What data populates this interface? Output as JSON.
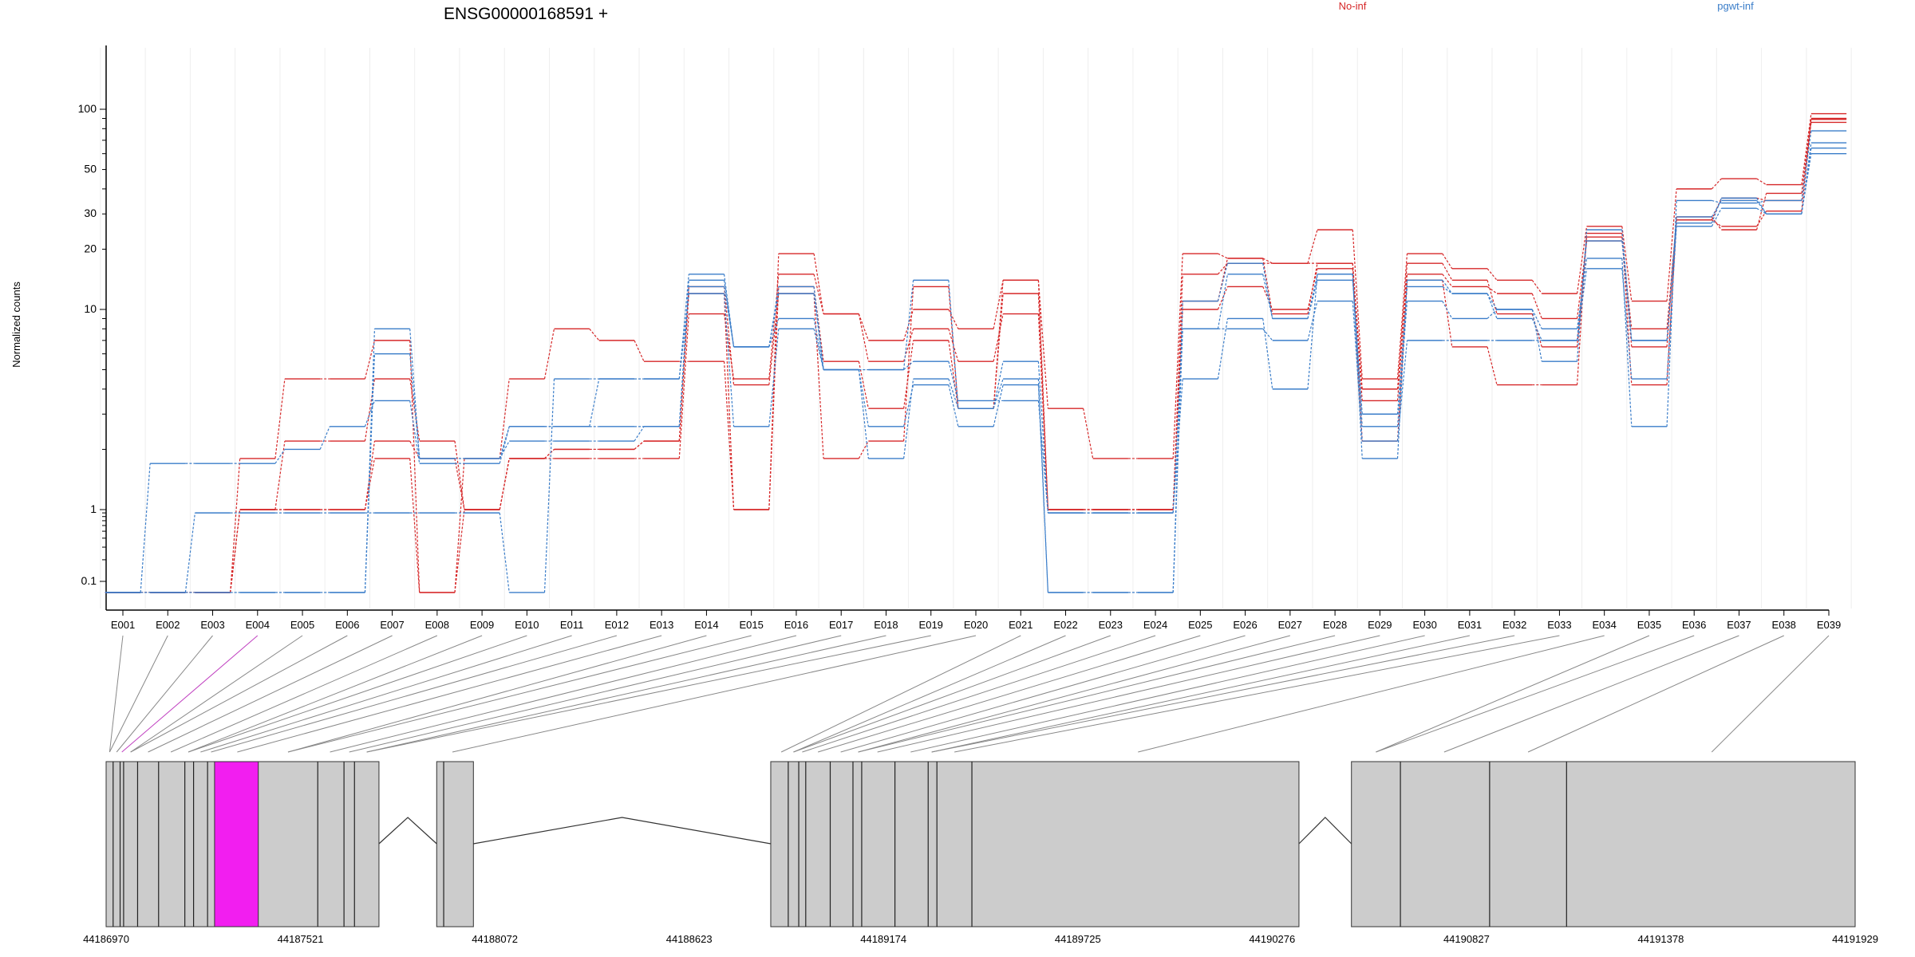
{
  "chart_data": {
    "type": "line",
    "title": "ENSG00000168591 +",
    "ylabel": "Normalized counts",
    "y_scale": "log",
    "y_ticks": [
      "100",
      "50",
      "30",
      "20",
      "10",
      "1",
      "0.1"
    ],
    "categories": [
      "E001",
      "E002",
      "E003",
      "E004",
      "E005",
      "E006",
      "E007",
      "E008",
      "E009",
      "E010",
      "E011",
      "E012",
      "E013",
      "E014",
      "E015",
      "E016",
      "E017",
      "E018",
      "E019",
      "E020",
      "E021",
      "E022",
      "E023",
      "E024",
      "E025",
      "E026",
      "E027",
      "E028",
      "E029",
      "E030",
      "E031",
      "E032",
      "E033",
      "E034",
      "E035",
      "E036",
      "E037",
      "E038",
      "E039"
    ],
    "groups": [
      {
        "name": "No-inf",
        "color": "#d62728"
      },
      {
        "name": "pgwt-inf",
        "color": "#3a7dc9"
      }
    ],
    "series": [
      {
        "group": "No-inf",
        "values": [
          0.07,
          0.07,
          0.07,
          1.8,
          4.5,
          4.5,
          7,
          0.07,
          1.8,
          4.5,
          8,
          7,
          5.5,
          5.5,
          1,
          19,
          9.5,
          7,
          10,
          8,
          14,
          3.2,
          1.8,
          1.8,
          19,
          18,
          17,
          25,
          4.5,
          19,
          16,
          14,
          12,
          26,
          11,
          40,
          45,
          42,
          95
        ]
      },
      {
        "group": "No-inf",
        "values": [
          0.07,
          0.07,
          0.07,
          1,
          2.2,
          2.2,
          4.5,
          2.2,
          1,
          1.8,
          1.8,
          1.8,
          1.8,
          9.5,
          4.5,
          15,
          9.5,
          5.5,
          8,
          5.5,
          9.5,
          1,
          1,
          1,
          15,
          17,
          17,
          17,
          4,
          17,
          14,
          9.5,
          6.5,
          23,
          6.5,
          29,
          25,
          38,
          90
        ]
      },
      {
        "group": "No-inf",
        "values": [
          0.07,
          0.07,
          0.07,
          1,
          1,
          1,
          1.8,
          0.07,
          1,
          1.8,
          2,
          2,
          2.2,
          13,
          4.2,
          12,
          1.8,
          2.2,
          13,
          3.2,
          12,
          1,
          1,
          1,
          11,
          18,
          9.5,
          17,
          3.5,
          15,
          13,
          12,
          9,
          22,
          8,
          28,
          36,
          35,
          86
        ]
      },
      {
        "group": "No-inf",
        "values": [
          0.07,
          0.07,
          0.07,
          1,
          1,
          1,
          2.2,
          1.8,
          1,
          1.8,
          2,
          2,
          2.2,
          12,
          1,
          13,
          5.5,
          3.2,
          7,
          3.2,
          14,
          1,
          1,
          1,
          10,
          13,
          10,
          16,
          2.2,
          14,
          6.5,
          4.2,
          4.2,
          24,
          4.2,
          28,
          26,
          31,
          89
        ]
      },
      {
        "group": "pgwt-inf",
        "values": [
          0.07,
          1.7,
          1.7,
          1.7,
          2,
          2.6,
          3.5,
          1.7,
          1.7,
          2.6,
          2.6,
          4.5,
          4.5,
          15,
          6.5,
          9,
          5,
          5,
          14,
          3.2,
          5.5,
          0.9,
          0.9,
          0.9,
          4.5,
          9,
          4,
          15,
          2.6,
          11,
          9,
          10,
          8,
          18,
          2.6,
          35,
          34,
          35,
          78
        ]
      },
      {
        "group": "pgwt-inf",
        "values": [
          0.07,
          0.07,
          0.9,
          0.9,
          0.9,
          0.9,
          0.9,
          0.9,
          0.9,
          0.07,
          4.5,
          4.5,
          4.5,
          12,
          2.6,
          8,
          5,
          5,
          5.5,
          3.5,
          3.5,
          0.9,
          0.9,
          0.9,
          8,
          8,
          7,
          11,
          2.2,
          7,
          7,
          7,
          7,
          16,
          4.5,
          26,
          32,
          30,
          60
        ]
      },
      {
        "group": "pgwt-inf",
        "values": [
          0.07,
          0.07,
          0.07,
          0.07,
          0.07,
          0.07,
          8,
          1.8,
          1.8,
          2.6,
          2.6,
          2.6,
          2.6,
          14,
          6.5,
          12,
          5,
          2.6,
          4.2,
          2.6,
          4.2,
          0.07,
          0.07,
          0.07,
          8,
          15,
          9,
          14,
          3,
          13,
          12,
          9,
          7,
          22,
          7,
          27,
          36,
          30,
          68
        ]
      },
      {
        "group": "pgwt-inf",
        "values": [
          0.07,
          0.07,
          0.07,
          0.07,
          0.07,
          0.07,
          6,
          1.8,
          1.8,
          2.2,
          2.2,
          2.2,
          2.6,
          13,
          6.5,
          13,
          5,
          1.8,
          4.5,
          3.2,
          4.5,
          0.07,
          0.07,
          0.07,
          11,
          17,
          9,
          15,
          1.8,
          14,
          12,
          10,
          5.5,
          25,
          7,
          29,
          35,
          30,
          64
        ]
      }
    ],
    "gene_model": {
      "coordinate_labels": [
        "44186970",
        "44187521",
        "44188072",
        "44188623",
        "44189174",
        "44189725",
        "44190276",
        "44190827",
        "44191378",
        "44191929"
      ],
      "highlighted_exon": "E004"
    }
  }
}
